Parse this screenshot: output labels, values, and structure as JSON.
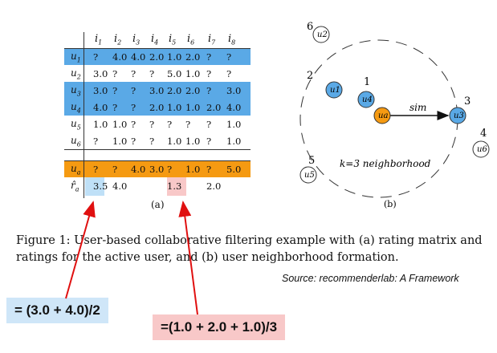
{
  "matrix": {
    "columns": [
      "i1",
      "i2",
      "i3",
      "i4",
      "i5",
      "i6",
      "i7",
      "i8"
    ],
    "rows": [
      {
        "label": "u1",
        "values": [
          "?",
          "4.0",
          "4.0",
          "2.0",
          "1.0",
          "2.0",
          "?",
          "?"
        ],
        "highlight": "blue"
      },
      {
        "label": "u2",
        "values": [
          "3.0",
          "?",
          "?",
          "?",
          "5.0",
          "1.0",
          "?",
          "?"
        ],
        "highlight": "none"
      },
      {
        "label": "u3",
        "values": [
          "3.0",
          "?",
          "?",
          "3.0",
          "2.0",
          "2.0",
          "?",
          "3.0"
        ],
        "highlight": "blue"
      },
      {
        "label": "u4",
        "values": [
          "4.0",
          "?",
          "?",
          "2.0",
          "1.0",
          "1.0",
          "2.0",
          "4.0"
        ],
        "highlight": "blue"
      },
      {
        "label": "u5",
        "values": [
          "1.0",
          "1.0",
          "?",
          "?",
          "?",
          "?",
          "?",
          "1.0"
        ],
        "highlight": "none"
      },
      {
        "label": "u6",
        "values": [
          "?",
          "1.0",
          "?",
          "?",
          "1.0",
          "1.0",
          "?",
          "1.0"
        ],
        "highlight": "none"
      }
    ],
    "active": {
      "label": "ua",
      "values": [
        "?",
        "?",
        "4.0",
        "3.0",
        "?",
        "1.0",
        "?",
        "5.0"
      ]
    },
    "predicted": {
      "label": "r̂a",
      "values": [
        "3.5",
        "4.0",
        "",
        "",
        "1.3",
        "",
        "2.0",
        ""
      ]
    },
    "sublabel": "(a)",
    "colors": {
      "blue": "#5aa9e6",
      "orange": "#f59a12",
      "pred_blue": "#bfe0f7",
      "pred_pink": "#f8c8c8"
    }
  },
  "neighborhood": {
    "sublabel": "(b)",
    "circle_label": "k=3 neighborhood",
    "sim_label": "sim",
    "nodes": [
      {
        "rank": "6",
        "label": "u2",
        "style": "outline"
      },
      {
        "rank": "2",
        "label": "u1",
        "style": "blue"
      },
      {
        "rank": "1",
        "label": "u4",
        "style": "blue"
      },
      {
        "rank": "",
        "label": "ua",
        "style": "orange"
      },
      {
        "rank": "3",
        "label": "u3",
        "style": "blue"
      },
      {
        "rank": "4",
        "label": "u6",
        "style": "outline"
      },
      {
        "rank": "5",
        "label": "u5",
        "style": "outline"
      }
    ]
  },
  "caption": {
    "line1": "Figure 1:  User-based collaborative filtering example with (a) rating matrix and",
    "line2": "ratings for the active user, and (b) user neighborhood formation."
  },
  "source": "Source: recommenderlab: A Framework",
  "formulas": {
    "blue": "= (3.0 + 4.0)/2",
    "pink": "=(1.0 + 2.0 + 1.0)/3"
  }
}
